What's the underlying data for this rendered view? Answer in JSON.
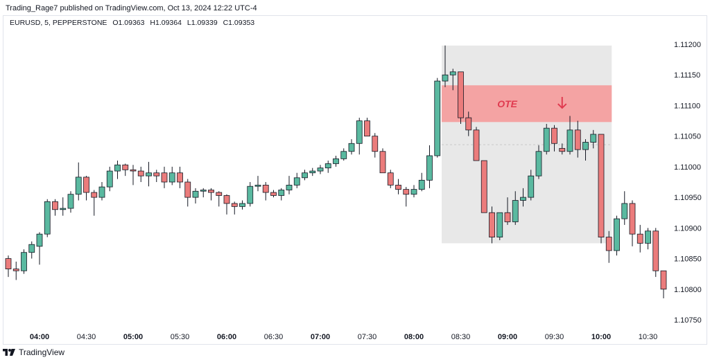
{
  "header": {
    "published": "Trading_Rage7 published on TradingView.com, Oct 13, 2024 12:22 UTC-4"
  },
  "legend": {
    "symbol": "EURUSD, 5, PEPPERSTONE",
    "open": "O1.09363",
    "high": "H1.09364",
    "low": "L1.09339",
    "close": "C1.09353"
  },
  "footer": {
    "brand": "TradingView"
  },
  "chart_data": {
    "type": "candlestick",
    "title": "",
    "ylim": [
      1.10725,
      1.11225
    ],
    "y_ticks": [
      "1.11200",
      "1.11150",
      "1.11100",
      "1.11050",
      "1.11000",
      "1.10950",
      "1.10900",
      "1.10850",
      "1.10800",
      "1.10750"
    ],
    "x_ticks": [
      {
        "label": "04:00",
        "bold": true,
        "bar": 4
      },
      {
        "label": "04:30",
        "bold": false,
        "bar": 10
      },
      {
        "label": "05:00",
        "bold": true,
        "bar": 16
      },
      {
        "label": "05:30",
        "bold": false,
        "bar": 22
      },
      {
        "label": "06:00",
        "bold": true,
        "bar": 28
      },
      {
        "label": "06:30",
        "bold": false,
        "bar": 34
      },
      {
        "label": "07:00",
        "bold": true,
        "bar": 40
      },
      {
        "label": "07:30",
        "bold": false,
        "bar": 46
      },
      {
        "label": "08:00",
        "bold": true,
        "bar": 52
      },
      {
        "label": "08:30",
        "bold": false,
        "bar": 58
      },
      {
        "label": "09:00",
        "bold": true,
        "bar": 64
      },
      {
        "label": "09:30",
        "bold": false,
        "bar": 70
      },
      {
        "label": "10:00",
        "bold": true,
        "bar": 76
      },
      {
        "label": "10:30",
        "bold": false,
        "bar": 82
      }
    ],
    "up_color": "#5ab9a0",
    "down_color": "#eb7c7c",
    "candles": [
      [
        1.1085,
        1.10855,
        1.1082,
        1.10833
      ],
      [
        1.10833,
        1.10845,
        1.10815,
        1.1083
      ],
      [
        1.1083,
        1.10865,
        1.10825,
        1.1086
      ],
      [
        1.1086,
        1.10878,
        1.1085,
        1.10873
      ],
      [
        1.1087,
        1.10893,
        1.1084,
        1.1089
      ],
      [
        1.1089,
        1.10947,
        1.10885,
        1.10943
      ],
      [
        1.10943,
        1.10947,
        1.1092,
        1.1093
      ],
      [
        1.1093,
        1.1095,
        1.1092,
        1.10932
      ],
      [
        1.10932,
        1.1096,
        1.10925,
        1.10955
      ],
      [
        1.10955,
        1.11007,
        1.10945,
        1.10983
      ],
      [
        1.10983,
        1.10985,
        1.10945,
        1.10958
      ],
      [
        1.10958,
        1.10962,
        1.1092,
        1.1095
      ],
      [
        1.1095,
        1.10975,
        1.10945,
        1.10967
      ],
      [
        1.10967,
        1.11,
        1.1096,
        1.10993
      ],
      [
        1.10993,
        1.1101,
        1.1098,
        1.11003
      ],
      [
        1.11003,
        1.11005,
        1.10985,
        1.10995
      ],
      [
        1.10995,
        1.11003,
        1.1097,
        1.10993
      ],
      [
        1.10993,
        1.11,
        1.10975,
        1.10985
      ],
      [
        1.10985,
        1.11008,
        1.10968,
        1.1099
      ],
      [
        1.1099,
        1.10995,
        1.10975,
        1.10985
      ],
      [
        1.1099,
        1.11,
        1.10965,
        1.10975
      ],
      [
        1.10975,
        1.11,
        1.1097,
        1.1099
      ],
      [
        1.1099,
        1.11,
        1.10965,
        1.10975
      ],
      [
        1.10975,
        1.1098,
        1.10935,
        1.1095
      ],
      [
        1.1095,
        1.10965,
        1.1094,
        1.1096
      ],
      [
        1.1096,
        1.10965,
        1.1095,
        1.10962
      ],
      [
        1.10962,
        1.10965,
        1.10945,
        1.10958
      ],
      [
        1.10958,
        1.1096,
        1.10935,
        1.10953
      ],
      [
        1.10953,
        1.10955,
        1.10922,
        1.1094
      ],
      [
        1.1094,
        1.10943,
        1.10922,
        1.10935
      ],
      [
        1.10935,
        1.10945,
        1.1093,
        1.1094
      ],
      [
        1.1094,
        1.10975,
        1.10935,
        1.10968
      ],
      [
        1.10968,
        1.10985,
        1.1096,
        1.1097
      ],
      [
        1.1097,
        1.10975,
        1.10945,
        1.10958
      ],
      [
        1.10958,
        1.10962,
        1.1095,
        1.10953
      ],
      [
        1.10953,
        1.10965,
        1.10945,
        1.10962
      ],
      [
        1.10962,
        1.10985,
        1.10955,
        1.1097
      ],
      [
        1.1097,
        1.1099,
        1.10965,
        1.10982
      ],
      [
        1.10982,
        1.10995,
        1.10978,
        1.1099
      ],
      [
        1.1099,
        1.10998,
        1.10985,
        1.10993
      ],
      [
        1.10993,
        1.11003,
        1.10988,
        1.10998
      ],
      [
        1.10998,
        1.1101,
        1.1099,
        1.11005
      ],
      [
        1.11005,
        1.11018,
        1.11,
        1.11013
      ],
      [
        1.11013,
        1.1103,
        1.1101,
        1.11025
      ],
      [
        1.11025,
        1.11045,
        1.1102,
        1.11038
      ],
      [
        1.11038,
        1.1108,
        1.1102,
        1.11075
      ],
      [
        1.11075,
        1.1108,
        1.1105,
        1.1105
      ],
      [
        1.1105,
        1.11055,
        1.11015,
        1.11025
      ],
      [
        1.11025,
        1.1103,
        1.1099,
        1.1099
      ],
      [
        1.1099,
        1.10995,
        1.10965,
        1.1097
      ],
      [
        1.1097,
        1.1098,
        1.10955,
        1.10963
      ],
      [
        1.10963,
        1.10967,
        1.10935,
        1.10955
      ],
      [
        1.10955,
        1.1097,
        1.1095,
        1.10963
      ],
      [
        1.10963,
        1.1099,
        1.1096,
        1.10978
      ],
      [
        1.10978,
        1.11035,
        1.10965,
        1.11018
      ],
      [
        1.11018,
        1.11145,
        1.11015,
        1.1114
      ],
      [
        1.1114,
        1.11198,
        1.1113,
        1.1115
      ],
      [
        1.1115,
        1.1116,
        1.11125,
        1.11155
      ],
      [
        1.11155,
        1.11155,
        1.1107,
        1.1108
      ],
      [
        1.1108,
        1.1109,
        1.1105,
        1.1106
      ],
      [
        1.1106,
        1.11065,
        1.1101,
        1.1101
      ],
      [
        1.1101,
        1.1101,
        1.10925,
        1.10925
      ],
      [
        1.10925,
        1.10935,
        1.10875,
        1.10885
      ],
      [
        1.10885,
        1.10925,
        1.1088,
        1.10925
      ],
      [
        1.10925,
        1.1095,
        1.10905,
        1.1091
      ],
      [
        1.1091,
        1.1096,
        1.10905,
        1.10945
      ],
      [
        1.10945,
        1.10965,
        1.10935,
        1.1095
      ],
      [
        1.1095,
        1.10995,
        1.10945,
        1.10985
      ],
      [
        1.10985,
        1.11035,
        1.1098,
        1.11025
      ],
      [
        1.11025,
        1.1107,
        1.1102,
        1.11063
      ],
      [
        1.11063,
        1.11068,
        1.11025,
        1.11038
      ],
      [
        1.1103,
        1.11038,
        1.1102,
        1.11025
      ],
      [
        1.11025,
        1.11083,
        1.1102,
        1.1106
      ],
      [
        1.1106,
        1.11075,
        1.11015,
        1.11028
      ],
      [
        1.11028,
        1.11045,
        1.1101,
        1.1104
      ],
      [
        1.1104,
        1.1106,
        1.1103,
        1.11053
      ],
      [
        1.11053,
        1.11053,
        1.10875,
        1.10885
      ],
      [
        1.10885,
        1.10895,
        1.10843,
        1.10863
      ],
      [
        1.10863,
        1.1092,
        1.10855,
        1.10915
      ],
      [
        1.10915,
        1.1096,
        1.10905,
        1.1094
      ],
      [
        1.1094,
        1.10945,
        1.1087,
        1.1089
      ],
      [
        1.1089,
        1.10905,
        1.1086,
        1.10875
      ],
      [
        1.10875,
        1.109,
        1.10865,
        1.10895
      ],
      [
        1.10895,
        1.109,
        1.1082,
        1.1083
      ],
      [
        1.1083,
        1.1083,
        1.10785,
        1.108
      ]
    ],
    "zones": [
      {
        "name": "grey-range",
        "from_bar": 56,
        "to_bar": 77,
        "y_low": 1.10875,
        "y_high": 1.11198,
        "color": "#e8e8e8"
      },
      {
        "name": "ote",
        "label": "OTE",
        "from_bar": 56,
        "to_bar": 77,
        "y_low": 1.11073,
        "y_high": 1.11133,
        "color": "#f4a3a3",
        "label_color": "#e03a4f"
      }
    ],
    "midline": {
      "from_bar": 56,
      "to_bar": 77,
      "y": 1.11036
    },
    "arrow": {
      "bar": 71,
      "y": 1.11105,
      "direction": "down",
      "color": "#e03a4f"
    }
  }
}
